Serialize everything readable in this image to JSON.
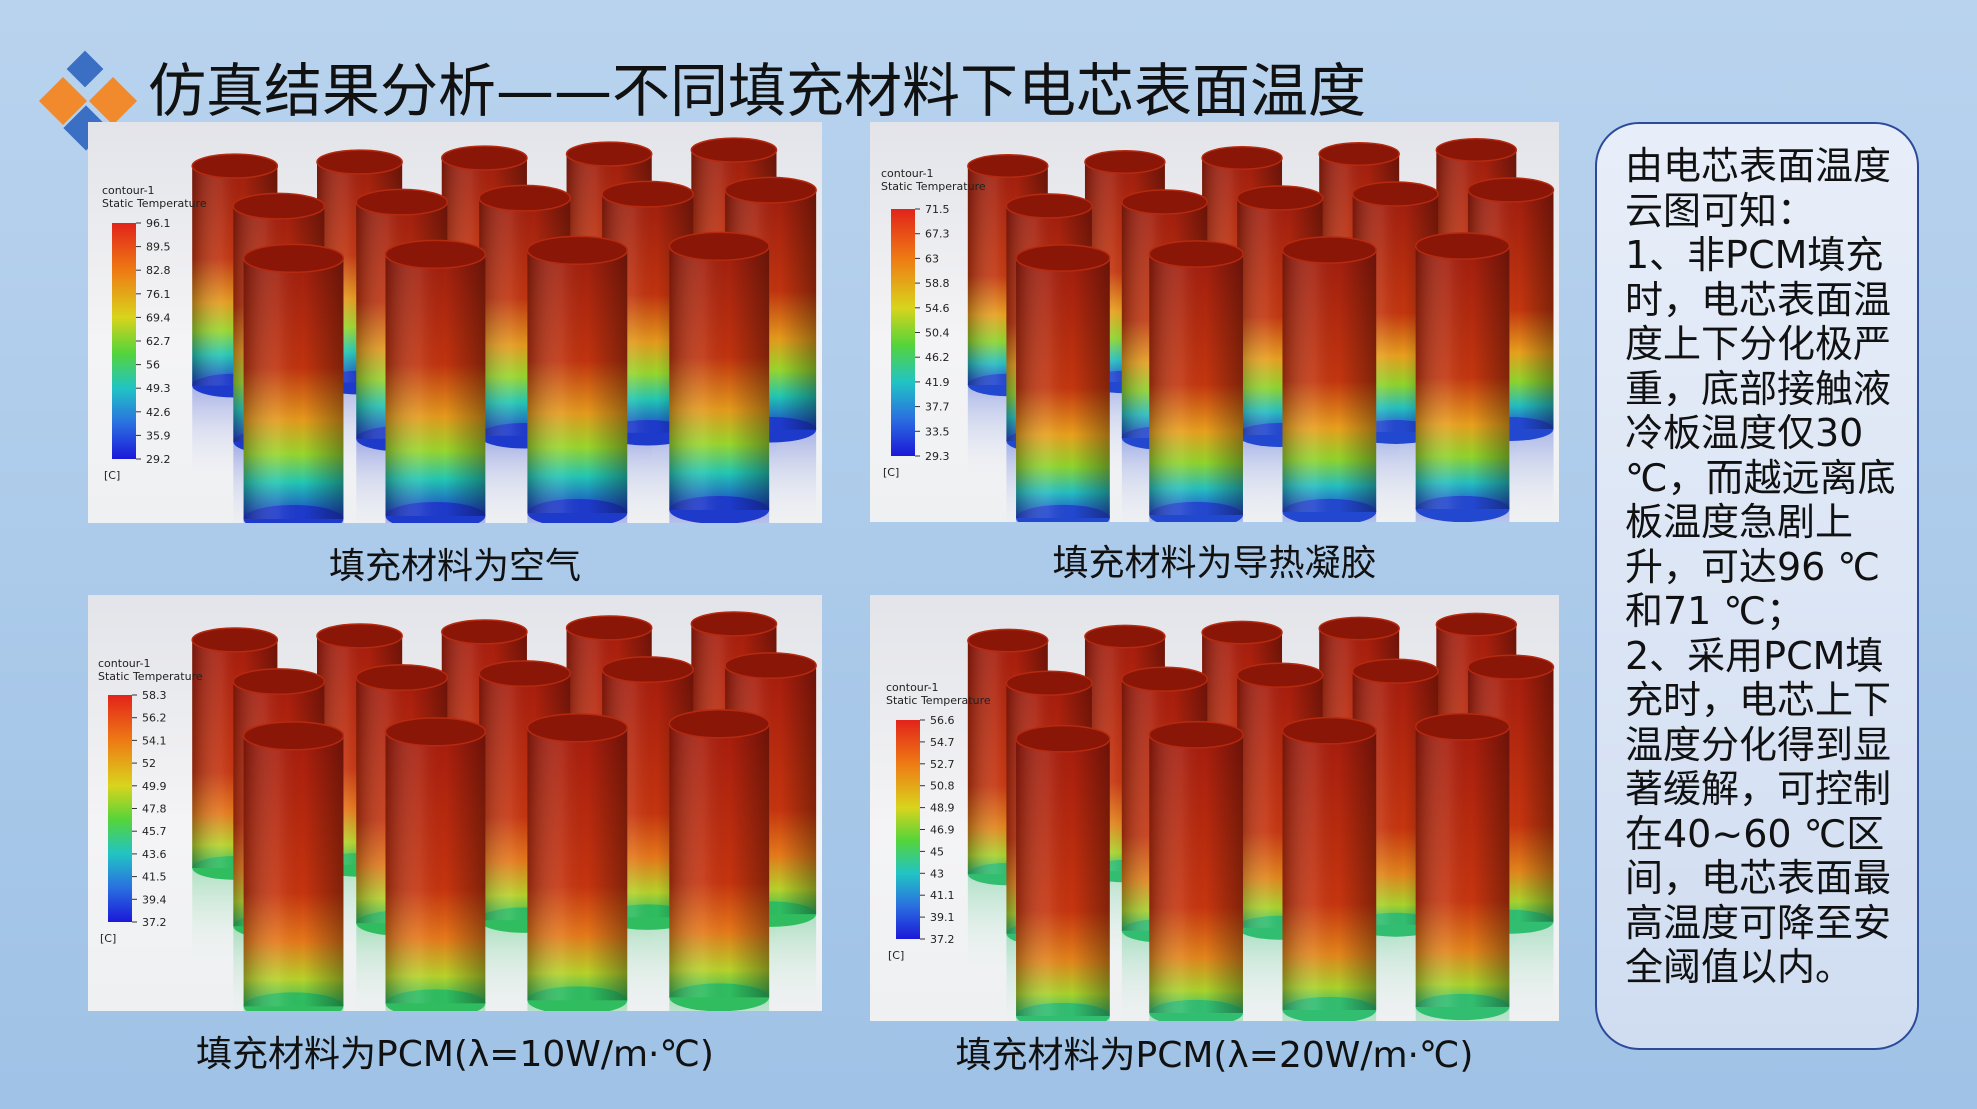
{
  "header": {
    "title": "仿真结果分析——不同填充材料下电芯表面温度"
  },
  "panels": [
    {
      "caption": "填充材料为空气",
      "legend": {
        "title": "contour-1",
        "quantity": "Static Temperature",
        "unit": "[C]",
        "ticks": [
          96.1,
          89.5,
          82.8,
          76.1,
          69.4,
          62.7,
          56,
          49.3,
          42.6,
          35.9,
          29.2
        ]
      }
    },
    {
      "caption": "填充材料为导热凝胶",
      "legend": {
        "title": "contour-1",
        "quantity": "Static Temperature",
        "unit": "[C]",
        "ticks": [
          71.5,
          67.3,
          63,
          58.8,
          54.6,
          50.4,
          46.2,
          41.9,
          37.7,
          33.5,
          29.3
        ]
      }
    },
    {
      "caption": "填充材料为PCM(λ=10W/m·℃)",
      "legend": {
        "title": "contour-1",
        "quantity": "Static Temperature",
        "unit": "[C]",
        "ticks": [
          58.3,
          56.2,
          54.1,
          52,
          49.9,
          47.8,
          45.7,
          43.6,
          41.5,
          39.4,
          37.2
        ]
      }
    },
    {
      "caption": "填充材料为PCM(λ=20W/m·℃)",
      "legend": {
        "title": "contour-1",
        "quantity": "Static Temperature",
        "unit": "[C]",
        "ticks": [
          56.6,
          54.7,
          52.7,
          50.8,
          48.9,
          46.9,
          45,
          43,
          41.1,
          39.1,
          37.2
        ]
      }
    }
  ],
  "summary": {
    "paragraphs": [
      "由电芯表面温度云图可知：",
      "1、非PCM填充时，电芯表面温度上下分化极严重，底部接触液冷板温度仅30 ℃，而越远离底板温度急剧上升，可达96 ℃和71 ℃；",
      "2、采用PCM填充时，电芯上下温度分化得到显著缓解，可控制在40~60 ℃区间，电芯表面最高温度可降至安全阈值以内。"
    ]
  }
}
